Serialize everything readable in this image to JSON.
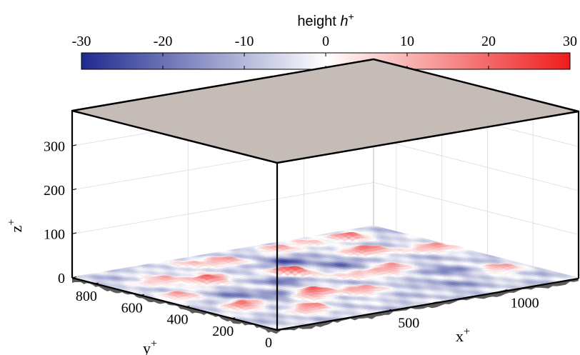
{
  "chart_data": {
    "type": "surface",
    "title": "",
    "colorbar": {
      "label": "height ",
      "label_symbol": "h",
      "label_sup": "+",
      "ticks": [
        "-30",
        "-20",
        "-10",
        "0",
        "10",
        "20",
        "30"
      ],
      "tick_values": [
        -30,
        -20,
        -10,
        0,
        10,
        20,
        30
      ],
      "range": [
        -30,
        30
      ],
      "colormap": [
        "#1f2a8f",
        "#ffffff",
        "#ee1c1c"
      ]
    },
    "axes": {
      "x": {
        "label": "x",
        "sup": "+",
        "ticks": [
          "500",
          "1000"
        ],
        "tick_values": [
          500,
          1000
        ],
        "range": [
          0,
          1300
        ]
      },
      "y": {
        "label": "y",
        "sup": "+",
        "ticks": [
          "0",
          "200",
          "400",
          "600",
          "800"
        ],
        "tick_values": [
          0,
          200,
          400,
          600,
          800
        ],
        "range": [
          0,
          900
        ]
      },
      "z": {
        "label": "z",
        "sup": "+",
        "ticks": [
          "0",
          "100",
          "200",
          "300"
        ],
        "tick_values": [
          0,
          100,
          200,
          300
        ],
        "range": [
          0,
          380
        ]
      }
    },
    "top_wall_color": "#c5bcb7",
    "bottom_wall_color": "#5b5b5b",
    "grid": true,
    "roughness_peaks": [
      {
        "x": 80,
        "y": 520,
        "h": 18
      },
      {
        "x": 200,
        "y": 700,
        "h": 22
      },
      {
        "x": 150,
        "y": 300,
        "h": 26
      },
      {
        "x": 330,
        "y": 620,
        "h": 28
      },
      {
        "x": 300,
        "y": 150,
        "h": 24
      },
      {
        "x": 450,
        "y": 300,
        "h": 30
      },
      {
        "x": 600,
        "y": 250,
        "h": 22
      },
      {
        "x": 620,
        "y": 560,
        "h": 30
      },
      {
        "x": 550,
        "y": 780,
        "h": 18
      },
      {
        "x": 760,
        "y": 420,
        "h": 16
      },
      {
        "x": 900,
        "y": 420,
        "h": 22
      },
      {
        "x": 1020,
        "y": 640,
        "h": 28
      },
      {
        "x": 1120,
        "y": 820,
        "h": 20
      },
      {
        "x": 960,
        "y": 830,
        "h": 16
      },
      {
        "x": 1180,
        "y": 230,
        "h": 20
      },
      {
        "x": 800,
        "y": 820,
        "h": 14
      },
      {
        "x": 420,
        "y": 820,
        "h": 14
      },
      {
        "x": 1230,
        "y": 560,
        "h": 24
      }
    ],
    "roughness_valleys": [
      {
        "x": 700,
        "y": 680,
        "h": -22
      },
      {
        "x": 820,
        "y": 560,
        "h": -18
      },
      {
        "x": 500,
        "y": 500,
        "h": -14
      },
      {
        "x": 250,
        "y": 420,
        "h": -12
      },
      {
        "x": 1050,
        "y": 300,
        "h": -14
      },
      {
        "x": 900,
        "y": 150,
        "h": -10
      },
      {
        "x": 350,
        "y": 350,
        "h": -10
      }
    ]
  }
}
